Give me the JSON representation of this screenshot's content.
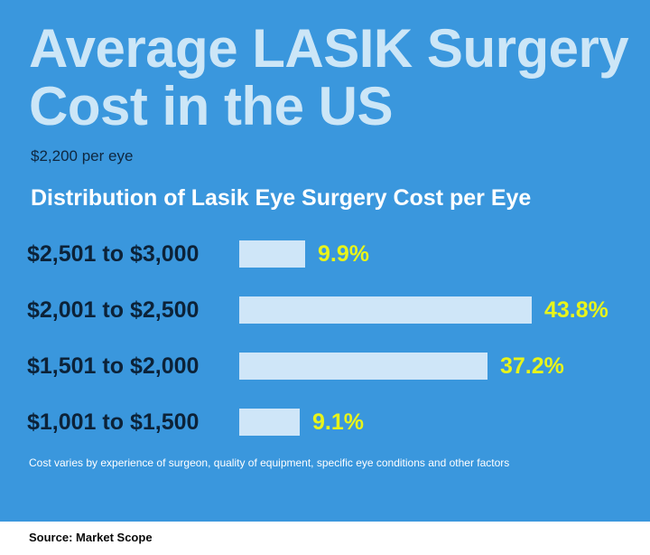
{
  "header": {
    "title": "Average LASIK Surgery Cost in the US",
    "subtitle": "$2,200 per eye"
  },
  "chart_data": {
    "type": "bar",
    "orientation": "horizontal",
    "title": "Distribution of Lasik Eye Surgery Cost per Eye",
    "categories": [
      "$2,501 to $3,000",
      "$2,001 to $2,500",
      "$1,501 to $2,000",
      "$1,001 to $1,500"
    ],
    "values": [
      9.9,
      43.8,
      37.2,
      9.1
    ],
    "value_labels": [
      "9.9%",
      "43.8%",
      "37.2%",
      "9.1%"
    ],
    "unit": "%",
    "xlim": [
      0,
      43.8
    ]
  },
  "footnote": "Cost varies by experience of surgeon, quality of equipment, specific eye conditions and other factors",
  "source": "Source: Market Scope",
  "colors": {
    "background": "#3a97dd",
    "title": "#cce6f7",
    "bar": "#cfe6f8",
    "value_label": "#e8f41a",
    "category_label": "#0c2238"
  }
}
